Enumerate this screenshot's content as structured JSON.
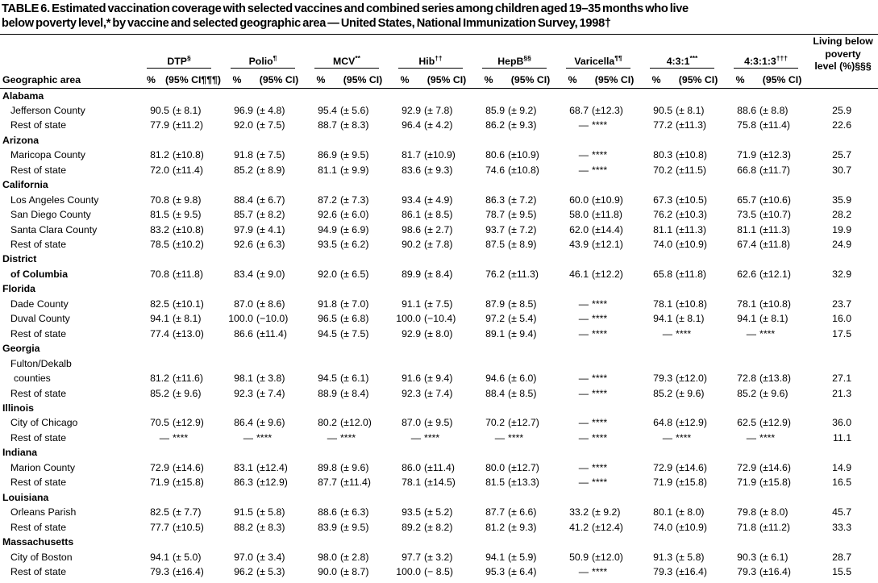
{
  "title": [
    "TABLE 6. Estimated vaccination coverage with selected vaccines and combined series among children aged 19–35 months who live",
    "below poverty level,* by vaccine and selected geographic area — United States, National Immunization Survey, 1998†"
  ],
  "columns": {
    "area_header": "Geographic area",
    "vaccines": [
      {
        "name": "DTP",
        "sup": "§",
        "pct": "%",
        "ci": "(95% CI¶¶¶)"
      },
      {
        "name": "Polio",
        "sup": "¶",
        "pct": "%",
        "ci": "(95% CI)"
      },
      {
        "name": "MCV",
        "sup": "**",
        "pct": "%",
        "ci": "(95% CI)"
      },
      {
        "name": "Hib",
        "sup": "††",
        "pct": "%",
        "ci": "(95% CI)"
      },
      {
        "name": "HepB",
        "sup": "§§",
        "pct": "%",
        "ci": "(95% CI)"
      },
      {
        "name": "Varicella",
        "sup": "¶¶",
        "pct": "%",
        "ci": "(95% CI)"
      },
      {
        "name": "4:3:1",
        "sup": "***",
        "pct": "%",
        "ci": "(95% CI)"
      },
      {
        "name": "4:3:1:3",
        "sup": "†††",
        "pct": "%",
        "ci": "(95% CI)"
      }
    ],
    "poverty_header": [
      "Living below",
      "poverty",
      "level (%)§§§"
    ]
  },
  "rows": [
    {
      "label": "Alabama",
      "bold": true,
      "indent": 0
    },
    {
      "label": "Jefferson County",
      "indent": 1,
      "v": [
        "90.5",
        "(± 8.1)",
        "96.9",
        "(± 4.8)",
        "95.4",
        "(± 5.6)",
        "92.9",
        "(± 7.8)",
        "85.9",
        "(± 9.2)",
        "68.7",
        "(±12.3)",
        "90.5",
        "(± 8.1)",
        "88.6",
        "(± 8.8)"
      ],
      "pov": "25.9"
    },
    {
      "label": "Rest of state",
      "indent": 1,
      "v": [
        "77.9",
        "(±11.2)",
        "92.0",
        "(± 7.5)",
        "88.7",
        "(± 8.3)",
        "96.4",
        "(± 4.2)",
        "86.2",
        "(± 9.3)",
        "—",
        "****",
        "77.2",
        "(±11.3)",
        "75.8",
        "(±11.4)"
      ],
      "pov": "22.6"
    },
    {
      "label": "Arizona",
      "bold": true,
      "indent": 0
    },
    {
      "label": "Maricopa County",
      "indent": 1,
      "v": [
        "81.2",
        "(±10.8)",
        "91.8",
        "(± 7.5)",
        "86.9",
        "(± 9.5)",
        "81.7",
        "(±10.9)",
        "80.6",
        "(±10.9)",
        "—",
        "****",
        "80.3",
        "(±10.8)",
        "71.9",
        "(±12.3)"
      ],
      "pov": "25.7"
    },
    {
      "label": "Rest of state",
      "indent": 1,
      "v": [
        "72.0",
        "(±11.4)",
        "85.2",
        "(± 8.9)",
        "81.1",
        "(± 9.9)",
        "83.6",
        "(± 9.3)",
        "74.6",
        "(±10.8)",
        "—",
        "****",
        "70.2",
        "(±11.5)",
        "66.8",
        "(±11.7)"
      ],
      "pov": "30.7"
    },
    {
      "label": "California",
      "bold": true,
      "indent": 0
    },
    {
      "label": "Los Angeles County",
      "indent": 1,
      "v": [
        "70.8",
        "(± 9.8)",
        "88.4",
        "(± 6.7)",
        "87.2",
        "(± 7.3)",
        "93.4",
        "(± 4.9)",
        "86.3",
        "(± 7.2)",
        "60.0",
        "(±10.9)",
        "67.3",
        "(±10.5)",
        "65.7",
        "(±10.6)"
      ],
      "pov": "35.9"
    },
    {
      "label": "San Diego County",
      "indent": 1,
      "v": [
        "81.5",
        "(± 9.5)",
        "85.7",
        "(± 8.2)",
        "92.6",
        "(± 6.0)",
        "86.1",
        "(± 8.5)",
        "78.7",
        "(± 9.5)",
        "58.0",
        "(±11.8)",
        "76.2",
        "(±10.3)",
        "73.5",
        "(±10.7)"
      ],
      "pov": "28.2"
    },
    {
      "label": "Santa Clara County",
      "indent": 1,
      "v": [
        "83.2",
        "(±10.8)",
        "97.9",
        "(± 4.1)",
        "94.9",
        "(± 6.9)",
        "98.6",
        "(± 2.7)",
        "93.7",
        "(± 7.2)",
        "62.0",
        "(±14.4)",
        "81.1",
        "(±11.3)",
        "81.1",
        "(±11.3)"
      ],
      "pov": "19.9"
    },
    {
      "label": "Rest of state",
      "indent": 1,
      "v": [
        "78.5",
        "(±10.2)",
        "92.6",
        "(± 6.3)",
        "93.5",
        "(± 6.2)",
        "90.2",
        "(± 7.8)",
        "87.5",
        "(± 8.9)",
        "43.9",
        "(±12.1)",
        "74.0",
        "(±10.9)",
        "67.4",
        "(±11.8)"
      ],
      "pov": "24.9"
    },
    {
      "label": "District",
      "bold": true,
      "indent": 0
    },
    {
      "label": "of Columbia",
      "bold": true,
      "indent": 1,
      "v": [
        "70.8",
        "(±11.8)",
        "83.4",
        "(± 9.0)",
        "92.0",
        "(± 6.5)",
        "89.9",
        "(± 8.4)",
        "76.2",
        "(±11.3)",
        "46.1",
        "(±12.2)",
        "65.8",
        "(±11.8)",
        "62.6",
        "(±12.1)"
      ],
      "pov": "32.9"
    },
    {
      "label": "Florida",
      "bold": true,
      "indent": 0
    },
    {
      "label": "Dade County",
      "indent": 1,
      "v": [
        "82.5",
        "(±10.1)",
        "87.0",
        "(± 8.6)",
        "91.8",
        "(± 7.0)",
        "91.1",
        "(± 7.5)",
        "87.9",
        "(± 8.5)",
        "—",
        "****",
        "78.1",
        "(±10.8)",
        "78.1",
        "(±10.8)"
      ],
      "pov": "23.7"
    },
    {
      "label": "Duval County",
      "indent": 1,
      "v": [
        "94.1",
        "(± 8.1)",
        "100.0",
        "(−10.0)",
        "96.5",
        "(± 6.8)",
        "100.0",
        "(−10.4)",
        "97.2",
        "(± 5.4)",
        "—",
        "****",
        "94.1",
        "(± 8.1)",
        "94.1",
        "(± 8.1)"
      ],
      "pov": "16.0"
    },
    {
      "label": "Rest of state",
      "indent": 1,
      "v": [
        "77.4",
        "(±13.0)",
        "86.6",
        "(±11.4)",
        "94.5",
        "(± 7.5)",
        "92.9",
        "(± 8.0)",
        "89.1",
        "(± 9.4)",
        "—",
        "****",
        "—",
        "****",
        "—",
        "****"
      ],
      "pov": "17.5"
    },
    {
      "label": "Georgia",
      "bold": true,
      "indent": 0
    },
    {
      "label": "Fulton/Dekalb",
      "indent": 1
    },
    {
      "label": "counties",
      "indent": 2,
      "v": [
        "81.2",
        "(±11.6)",
        "98.1",
        "(± 3.8)",
        "94.5",
        "(± 6.1)",
        "91.6",
        "(± 9.4)",
        "94.6",
        "(± 6.0)",
        "—",
        "****",
        "79.3",
        "(±12.0)",
        "72.8",
        "(±13.8)"
      ],
      "pov": "27.1"
    },
    {
      "label": "Rest of state",
      "indent": 1,
      "v": [
        "85.2",
        "(± 9.6)",
        "92.3",
        "(± 7.4)",
        "88.9",
        "(± 8.4)",
        "92.3",
        "(± 7.4)",
        "88.4",
        "(± 8.5)",
        "—",
        "****",
        "85.2",
        "(± 9.6)",
        "85.2",
        "(± 9.6)"
      ],
      "pov": "21.3"
    },
    {
      "label": "Illinois",
      "bold": true,
      "indent": 0
    },
    {
      "label": "City of Chicago",
      "indent": 1,
      "v": [
        "70.5",
        "(±12.9)",
        "86.4",
        "(± 9.6)",
        "80.2",
        "(±12.0)",
        "87.0",
        "(± 9.5)",
        "70.2",
        "(±12.7)",
        "—",
        "****",
        "64.8",
        "(±12.9)",
        "62.5",
        "(±12.9)"
      ],
      "pov": "36.0"
    },
    {
      "label": "Rest of state",
      "indent": 1,
      "v": [
        "—",
        "****",
        "—",
        "****",
        "—",
        "****",
        "—",
        "****",
        "—",
        "****",
        "—",
        "****",
        "—",
        "****",
        "—",
        "****"
      ],
      "pov": "11.1"
    },
    {
      "label": "Indiana",
      "bold": true,
      "indent": 0
    },
    {
      "label": "Marion County",
      "indent": 1,
      "v": [
        "72.9",
        "(±14.6)",
        "83.1",
        "(±12.4)",
        "89.8",
        "(± 9.6)",
        "86.0",
        "(±11.4)",
        "80.0",
        "(±12.7)",
        "—",
        "****",
        "72.9",
        "(±14.6)",
        "72.9",
        "(±14.6)"
      ],
      "pov": "14.9"
    },
    {
      "label": "Rest of state",
      "indent": 1,
      "v": [
        "71.9",
        "(±15.8)",
        "86.3",
        "(±12.9)",
        "87.7",
        "(±11.4)",
        "78.1",
        "(±14.5)",
        "81.5",
        "(±13.3)",
        "—",
        "****",
        "71.9",
        "(±15.8)",
        "71.9",
        "(±15.8)"
      ],
      "pov": "16.5"
    },
    {
      "label": "Louisiana",
      "bold": true,
      "indent": 0
    },
    {
      "label": "Orleans Parish",
      "indent": 1,
      "v": [
        "82.5",
        "(± 7.7)",
        "91.5",
        "(± 5.8)",
        "88.6",
        "(± 6.3)",
        "93.5",
        "(± 5.2)",
        "87.7",
        "(± 6.6)",
        "33.2",
        "(± 9.2)",
        "80.1",
        "(± 8.0)",
        "79.8",
        "(± 8.0)"
      ],
      "pov": "45.7"
    },
    {
      "label": "Rest of state",
      "indent": 1,
      "v": [
        "77.7",
        "(±10.5)",
        "88.2",
        "(± 8.3)",
        "83.9",
        "(± 9.5)",
        "89.2",
        "(± 8.2)",
        "81.2",
        "(± 9.3)",
        "41.2",
        "(±12.4)",
        "74.0",
        "(±10.9)",
        "71.8",
        "(±11.2)"
      ],
      "pov": "33.3"
    },
    {
      "label": "Massachusetts",
      "bold": true,
      "indent": 0
    },
    {
      "label": "City of Boston",
      "indent": 1,
      "v": [
        "94.1",
        "(± 5.0)",
        "97.0",
        "(± 3.4)",
        "98.0",
        "(± 2.8)",
        "97.7",
        "(± 3.2)",
        "94.1",
        "(± 5.9)",
        "50.9",
        "(±12.0)",
        "91.3",
        "(± 5.8)",
        "90.3",
        "(± 6.1)"
      ],
      "pov": "28.7"
    },
    {
      "label": "Rest of state",
      "indent": 1,
      "v": [
        "79.3",
        "(±16.4)",
        "96.2",
        "(± 5.3)",
        "90.0",
        "(± 8.7)",
        "100.0",
        "(− 8.5)",
        "95.3",
        "(± 6.4)",
        "—",
        "****",
        "79.3",
        "(±16.4)",
        "79.3",
        "(±16.4)"
      ],
      "pov": "15.5"
    }
  ]
}
